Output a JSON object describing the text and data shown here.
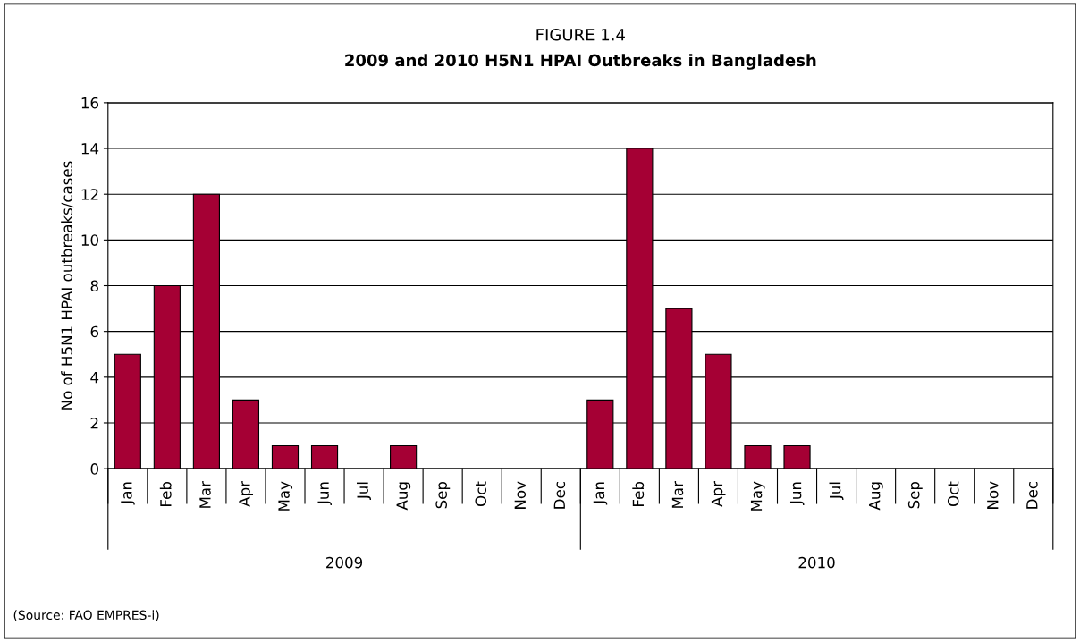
{
  "chart_data": {
    "type": "bar",
    "title": "FIGURE 1.4",
    "subtitle": "2009 and 2010 H5N1 HPAI Outbreaks in Bangladesh",
    "ylabel": "No of H5N1 HPAI outbreaks/cases",
    "categories": [
      "Jan",
      "Feb",
      "Mar",
      "Apr",
      "May",
      "Jun",
      "Jul",
      "Aug",
      "Sep",
      "Oct",
      "Nov",
      "Dec",
      "Jan",
      "Feb",
      "Mar",
      "Apr",
      "May",
      "Jun",
      "Jul",
      "Aug",
      "Sep",
      "Oct",
      "Nov",
      "Dec"
    ],
    "values": [
      5,
      8,
      12,
      3,
      1,
      1,
      0,
      1,
      0,
      0,
      0,
      0,
      3,
      14,
      7,
      5,
      1,
      1,
      0,
      0,
      0,
      0,
      0,
      0
    ],
    "color": "#a50034",
    "ylim": [
      0,
      16
    ],
    "yticks": [
      0,
      2,
      4,
      6,
      8,
      10,
      12,
      14,
      16
    ],
    "grid": "y",
    "annotations": [
      "2009",
      "2010",
      "(Source: FAO EMPRES-i)"
    ]
  }
}
